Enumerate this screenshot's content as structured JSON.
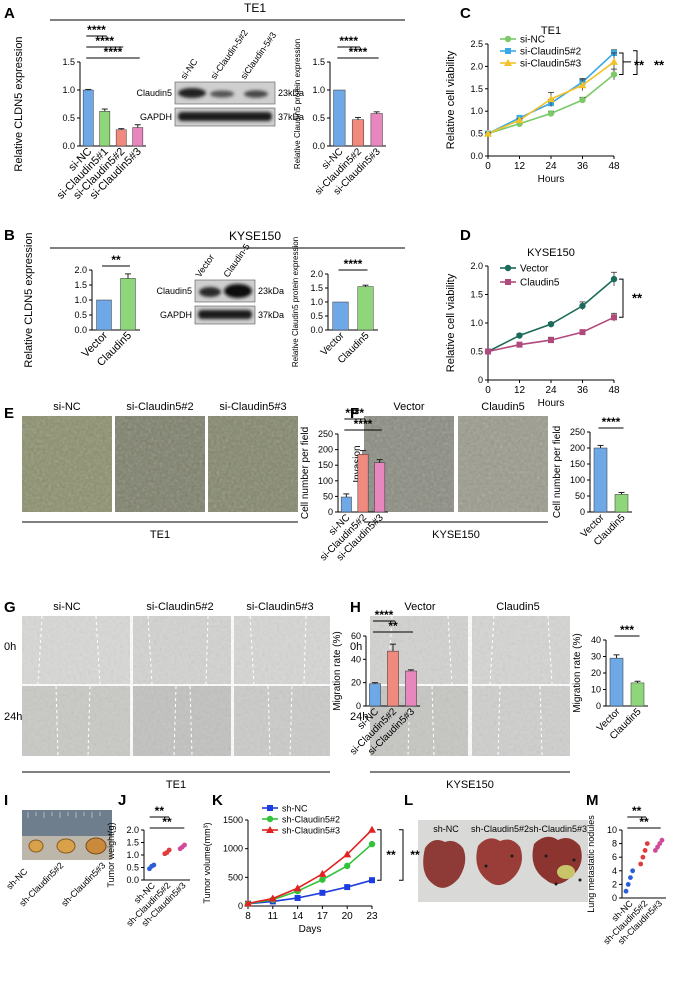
{
  "figure": {
    "panels": {
      "A": "A",
      "B": "B",
      "C": "C",
      "D": "D",
      "E": "E",
      "F": "F",
      "G": "G",
      "H": "H",
      "I": "I",
      "J": "J",
      "K": "K",
      "L": "L",
      "M": "M"
    },
    "top_titles": {
      "te1": "TE1",
      "kyse150": "KYSE150"
    },
    "blot": {
      "A_lanes": [
        "si-NC",
        "si-Claudin-5#2",
        "siClaudin-5#3"
      ],
      "B_lanes": [
        "Vector",
        "Claudin-5"
      ],
      "rows": [
        "Claudin5",
        "GAPDH"
      ],
      "sizes": [
        "23kDa",
        "37kDa"
      ]
    },
    "images": {
      "E_labels": [
        "si-NC",
        "si-Claudin5#2",
        "si-Claudin5#3"
      ],
      "E_caption": "TE1",
      "F_labels": [
        "Vector",
        "Claudin5"
      ],
      "F_side": "Invasion",
      "F_caption": "KYSE150",
      "G_labels": [
        "si-NC",
        "si-Claudin5#2",
        "si-Claudin5#3"
      ],
      "G_rows": [
        "0h",
        "24h"
      ],
      "G_caption": "TE1",
      "H_labels": [
        "Vector",
        "Claudin5"
      ],
      "H_rows": [
        "0h",
        "24h"
      ],
      "H_caption": "KYSE150",
      "I_labels": [
        "sh-NC",
        "sh-Claudin5#2",
        "sh-Claudin5#3"
      ],
      "L_labels": [
        "sh-NC",
        "sh-Claudin5#2",
        "sh-Claudin5#3"
      ]
    }
  },
  "chart_data": [
    {
      "id": "A1",
      "type": "bar",
      "ylabel": "Relative CLDN5 expression",
      "categories": [
        "si-NC",
        "si-Claudin5#1",
        "si-Claudin5#2",
        "si-Claudin5#3"
      ],
      "values": [
        1.0,
        0.62,
        0.29,
        0.33
      ],
      "errors": [
        0.01,
        0.04,
        0.02,
        0.05
      ],
      "colors": [
        "#6fa8e6",
        "#8fd67a",
        "#f08a7e",
        "#e787bd"
      ],
      "ylim": [
        0,
        1.5
      ],
      "yticks": [
        "0.0",
        "0.5",
        "1.0",
        "1.5"
      ],
      "sig": [
        "****",
        "****",
        "****"
      ]
    },
    {
      "id": "A2",
      "type": "bar",
      "ylabel": "Relative Claudin5 protein expression",
      "categories": [
        "si-NC",
        "si-Claudin5#2",
        "si-Claudin5#3"
      ],
      "values": [
        1.0,
        0.47,
        0.58
      ],
      "errors": [
        0.0,
        0.04,
        0.03
      ],
      "colors": [
        "#6fa8e6",
        "#f08a7e",
        "#e787bd"
      ],
      "ylim": [
        0,
        1.5
      ],
      "yticks": [
        "0.0",
        "0.5",
        "1.0",
        "1.5"
      ],
      "sig": [
        "****",
        "****"
      ]
    },
    {
      "id": "B1",
      "type": "bar",
      "ylabel": "Relative CLDN5 expression",
      "categories": [
        "Vector",
        "Claudin5"
      ],
      "values": [
        1.0,
        1.72
      ],
      "errors": [
        0.0,
        0.15
      ],
      "colors": [
        "#6fa8e6",
        "#8fd67a"
      ],
      "ylim": [
        0,
        2.0
      ],
      "yticks": [
        "0.0",
        "0.5",
        "1.0",
        "1.5",
        "2.0"
      ],
      "sig": [
        "**"
      ]
    },
    {
      "id": "B2",
      "type": "bar",
      "ylabel": "Relative Claudin5 protein expression",
      "categories": [
        "Vector",
        "Claudin5"
      ],
      "values": [
        1.0,
        1.55
      ],
      "errors": [
        0.0,
        0.05
      ],
      "colors": [
        "#6fa8e6",
        "#8fd67a"
      ],
      "ylim": [
        0,
        2.0
      ],
      "yticks": [
        "0.0",
        "0.5",
        "1.0",
        "1.5",
        "2.0"
      ],
      "sig": [
        "****"
      ]
    },
    {
      "id": "C",
      "type": "line",
      "title": "TE1",
      "xlabel": "Hours",
      "ylabel": "Relative cell viability",
      "x": [
        0,
        12,
        24,
        36,
        48
      ],
      "xlim": [
        0,
        48
      ],
      "xticks": [
        "0",
        "12",
        "24",
        "36",
        "48"
      ],
      "ylim": [
        0,
        2.5
      ],
      "yticks": [
        "0.0",
        "0.5",
        "1.0",
        "1.5",
        "2.0",
        "2.5"
      ],
      "series": [
        {
          "name": "si-NC",
          "values": [
            0.5,
            0.72,
            0.95,
            1.25,
            1.82
          ],
          "errors": [
            0.02,
            0.03,
            0.05,
            0.06,
            0.12
          ],
          "color": "#7cc96a",
          "marker": "circle"
        },
        {
          "name": "si-Claudin5#2",
          "values": [
            0.5,
            0.85,
            1.18,
            1.65,
            2.3
          ],
          "errors": [
            0.02,
            0.03,
            0.08,
            0.08,
            0.07
          ],
          "color": "#39a8e8",
          "marker": "square"
        },
        {
          "name": "si-Claudin5#3",
          "values": [
            0.5,
            0.8,
            1.27,
            1.58,
            2.1
          ],
          "errors": [
            0.02,
            0.03,
            0.15,
            0.12,
            0.2
          ],
          "color": "#f3c228",
          "marker": "triangle"
        }
      ],
      "sig": [
        "**",
        "**"
      ]
    },
    {
      "id": "D",
      "type": "line",
      "title": "KYSE150",
      "xlabel": "Hours",
      "ylabel": "Relative cell viability",
      "x": [
        0,
        12,
        24,
        36,
        48
      ],
      "xlim": [
        0,
        48
      ],
      "xticks": [
        "0",
        "12",
        "24",
        "36",
        "48"
      ],
      "ylim": [
        0,
        2.0
      ],
      "yticks": [
        "0",
        "0.5",
        "1.0",
        "1.5",
        "2.0"
      ],
      "series": [
        {
          "name": "Vector",
          "values": [
            0.5,
            0.78,
            0.98,
            1.3,
            1.77
          ],
          "errors": [
            0.02,
            0.03,
            0.03,
            0.07,
            0.12
          ],
          "color": "#1a6b5a",
          "marker": "circle"
        },
        {
          "name": "Claudin5",
          "values": [
            0.5,
            0.62,
            0.7,
            0.84,
            1.1
          ],
          "errors": [
            0.02,
            0.02,
            0.05,
            0.03,
            0.07
          ],
          "color": "#b14a7c",
          "marker": "square"
        }
      ],
      "sig": [
        "**"
      ]
    },
    {
      "id": "E",
      "type": "bar",
      "ylabel": "Cell number per field",
      "categories": [
        "si-NC",
        "si-Claudin5#2",
        "si-Claudin5#3"
      ],
      "values": [
        48,
        185,
        158
      ],
      "errors": [
        10,
        12,
        10
      ],
      "colors": [
        "#6fa8e6",
        "#f08a7e",
        "#e787bd"
      ],
      "ylim": [
        0,
        250
      ],
      "yticks": [
        "0",
        "50",
        "100",
        "150",
        "200",
        "250"
      ],
      "sig": [
        "****",
        "****"
      ]
    },
    {
      "id": "F",
      "type": "bar",
      "ylabel": "Cell number per field",
      "categories": [
        "Vector",
        "Claudin5"
      ],
      "values": [
        200,
        55
      ],
      "errors": [
        8,
        6
      ],
      "colors": [
        "#6fa8e6",
        "#8fd67a"
      ],
      "ylim": [
        0,
        250
      ],
      "yticks": [
        "0",
        "50",
        "100",
        "150",
        "200",
        "250"
      ],
      "sig": [
        "****"
      ]
    },
    {
      "id": "G",
      "type": "bar",
      "ylabel": "Migration rate (%)",
      "categories": [
        "si-NC",
        "si-Claudin5#2",
        "si-Claudin5#3"
      ],
      "values": [
        19,
        47,
        30
      ],
      "errors": [
        1,
        6,
        1
      ],
      "colors": [
        "#6fa8e6",
        "#f08a7e",
        "#e787bd"
      ],
      "ylim": [
        0,
        60
      ],
      "yticks": [
        "0",
        "20",
        "40",
        "60"
      ],
      "sig": [
        "****",
        "**"
      ]
    },
    {
      "id": "H",
      "type": "bar",
      "ylabel": "Migration rate (%)",
      "categories": [
        "Vector",
        "Claudin5"
      ],
      "values": [
        29,
        14
      ],
      "errors": [
        2,
        1
      ],
      "colors": [
        "#6fa8e6",
        "#8fd67a"
      ],
      "ylim": [
        0,
        40
      ],
      "yticks": [
        "0",
        "10",
        "20",
        "30",
        "40"
      ],
      "sig": [
        "***"
      ]
    },
    {
      "id": "J",
      "type": "scatter",
      "ylabel": "Tumor weight(g)",
      "categories": [
        "sh-NC",
        "sh-Claudin5#2",
        "sh-Claudin5#3"
      ],
      "points": [
        [
          0.45,
          0.55,
          0.6
        ],
        [
          1.05,
          1.1,
          1.2
        ],
        [
          1.25,
          1.32,
          1.4
        ]
      ],
      "colors": [
        "#2a5ed8",
        "#e23b3b",
        "#d14a9a"
      ],
      "ylim": [
        0,
        2.0
      ],
      "yticks": [
        "0.0",
        "0.5",
        "1.0",
        "1.5",
        "2.0"
      ],
      "sig": [
        "**",
        "**"
      ]
    },
    {
      "id": "K",
      "type": "line",
      "xlabel": "Days",
      "ylabel": "Tumor volume(mm³)",
      "x": [
        8,
        11,
        14,
        17,
        20,
        23
      ],
      "xlim": [
        8,
        23
      ],
      "xticks": [
        "8",
        "11",
        "14",
        "17",
        "20",
        "23"
      ],
      "ylim": [
        0,
        1500
      ],
      "yticks": [
        "0",
        "500",
        "1000",
        "1500"
      ],
      "series": [
        {
          "name": "sh-NC",
          "values": [
            40,
            80,
            140,
            230,
            330,
            450
          ],
          "color": "#1e3de0",
          "marker": "square"
        },
        {
          "name": "sh-Claudin5#2",
          "values": [
            40,
            110,
            260,
            460,
            700,
            1080
          ],
          "color": "#33c23c",
          "marker": "circle"
        },
        {
          "name": "sh-Claudin5#3",
          "values": [
            45,
            130,
            310,
            560,
            900,
            1330
          ],
          "color": "#e22121",
          "marker": "triangle"
        }
      ],
      "sig": [
        "**",
        "**"
      ]
    },
    {
      "id": "M",
      "type": "scatter",
      "ylabel": "Lung metastatic nodules",
      "categories": [
        "sh-NC",
        "sh-Claudin5#2",
        "sh-Claudin5#3"
      ],
      "points": [
        [
          1,
          2,
          3,
          4
        ],
        [
          5,
          6,
          7,
          8
        ],
        [
          7,
          7.5,
          8,
          8.5
        ]
      ],
      "colors": [
        "#2a5ed8",
        "#e23b3b",
        "#d14a9a"
      ],
      "ylim": [
        0,
        10
      ],
      "yticks": [
        "0",
        "2",
        "4",
        "6",
        "8",
        "10"
      ],
      "sig": [
        "**",
        "**"
      ]
    }
  ]
}
